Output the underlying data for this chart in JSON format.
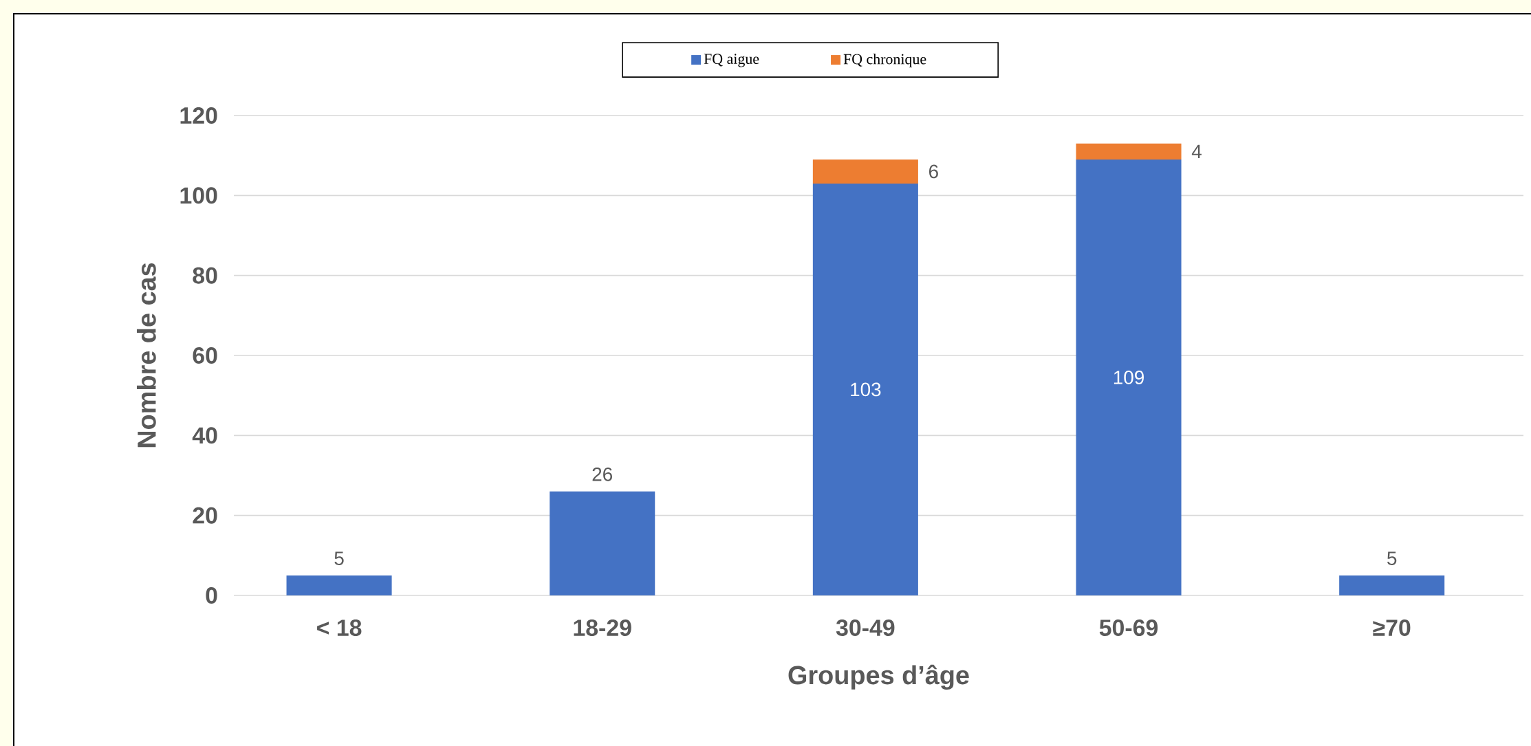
{
  "chart_data": {
    "type": "bar",
    "stacked": true,
    "xlabel": "Groupes d’âge",
    "ylabel": "Nombre de cas",
    "categories": [
      "< 18",
      "18-29",
      "30-49",
      "50-69",
      "≥70"
    ],
    "series": [
      {
        "name": "FQ aigue",
        "color": "#4472c4",
        "values": [
          5,
          26,
          103,
          109,
          5
        ],
        "value_labels": [
          "5",
          "26",
          "103",
          "109",
          "5"
        ]
      },
      {
        "name": "FQ chronique",
        "color": "#ed7d31",
        "values": [
          0,
          0,
          6,
          4,
          0
        ],
        "value_labels": [
          null,
          null,
          "6",
          "4",
          null
        ]
      }
    ],
    "ylim": [
      0,
      120
    ],
    "yticks": [
      0,
      20,
      40,
      60,
      80,
      100,
      120
    ],
    "grid": "y",
    "legend": "top"
  }
}
